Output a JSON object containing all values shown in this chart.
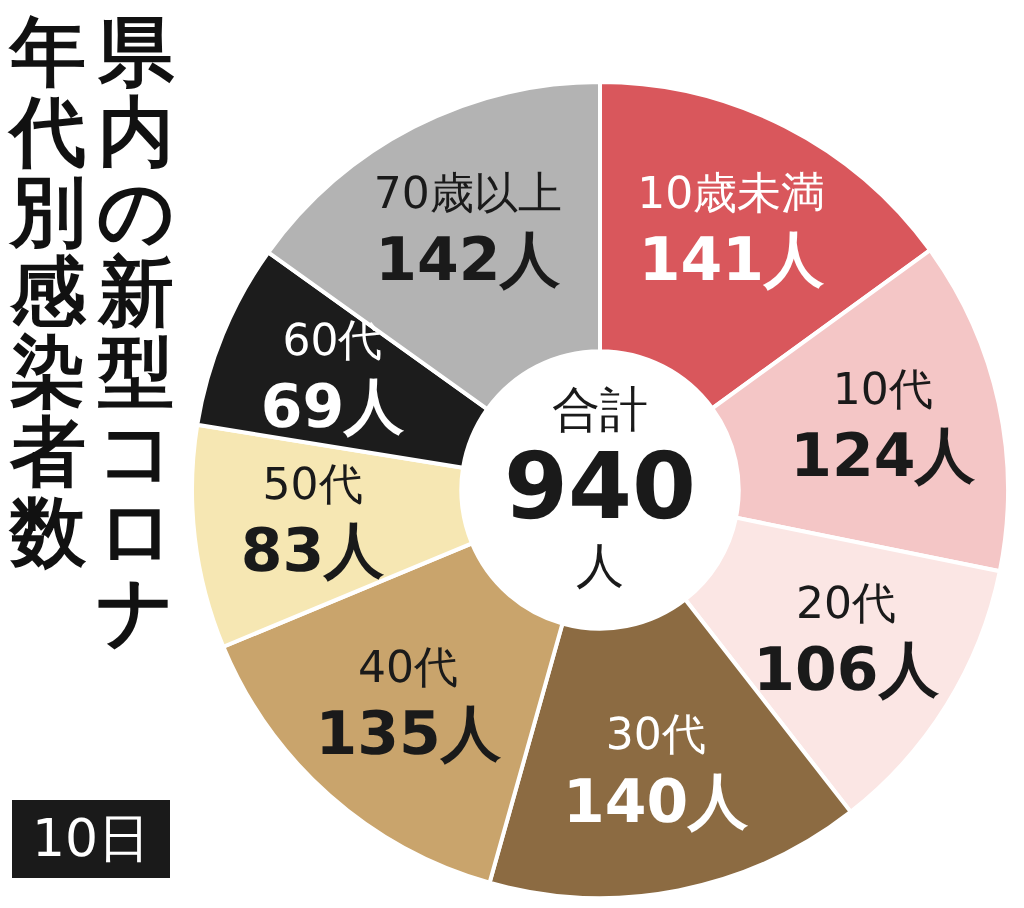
{
  "chart_data": {
    "type": "donut",
    "title": "県内の新型コロナ年代別感染者数",
    "categories": [
      "10歳未満",
      "10代",
      "20代",
      "30代",
      "40代",
      "50代",
      "60代",
      "70歳以上"
    ],
    "values": [
      141,
      124,
      106,
      140,
      135,
      83,
      69,
      142
    ],
    "value_labels": [
      "141人",
      "124人",
      "106人",
      "140人",
      "135人",
      "83人",
      "69人",
      "142人"
    ],
    "colors": [
      "#d9575c",
      "#f4c6c6",
      "#fbe6e4",
      "#8c6b42",
      "#c9a46c",
      "#f6e7b3",
      "#1c1c1c",
      "#b3b3b3"
    ],
    "annotations": [
      "合計",
      "940",
      "人",
      "10日"
    ],
    "legend": false
  }
}
